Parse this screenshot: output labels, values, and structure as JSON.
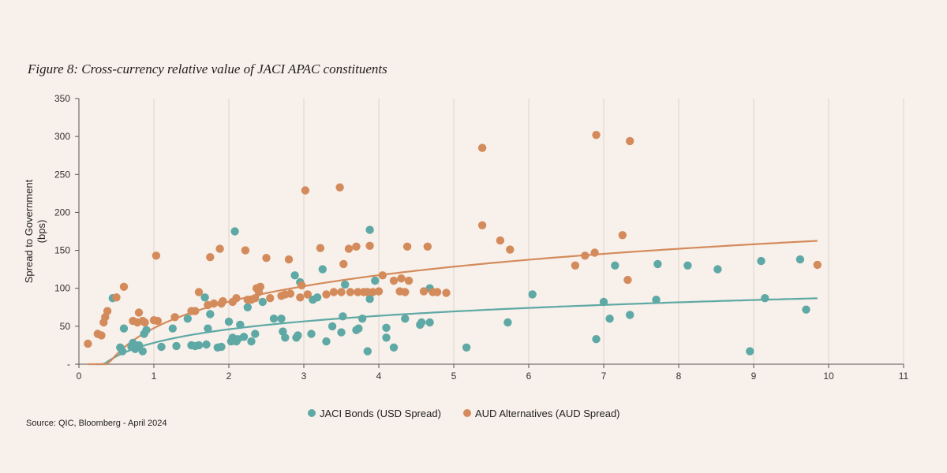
{
  "figure_title": "Figure 8: Cross-currency relative value of JACI APAC constituents",
  "source": "Source: QIC, Bloomberg - April 2024",
  "colors": {
    "jaci": "#5ea9a5",
    "aud": "#d48b5c",
    "grid": "#dcd3cc",
    "axis": "#555555"
  },
  "chart_data": {
    "type": "scatter",
    "title": "",
    "xlabel": "",
    "ylabel_lines": [
      "Spread to Government",
      "(bps)"
    ],
    "xlim": [
      0,
      11
    ],
    "ylim": [
      0,
      350
    ],
    "x_ticks": [
      0,
      1,
      2,
      3,
      4,
      5,
      6,
      7,
      8,
      9,
      10,
      11
    ],
    "x_tick_labels": [
      "0",
      "1",
      "2",
      "3",
      "4",
      "5",
      "6",
      "7",
      "8",
      "9",
      "10",
      "11"
    ],
    "y_ticks": [
      0,
      50,
      100,
      150,
      200,
      250,
      300,
      350
    ],
    "y_tick_labels": [
      "-",
      "50",
      "100",
      "150",
      "200",
      "250",
      "300",
      "350"
    ],
    "grid": "vertical",
    "legend_position": "bottom",
    "series": [
      {
        "name": "JACI Bonds (USD Spread)",
        "color_key": "jaci",
        "points": [
          [
            0.45,
            87
          ],
          [
            0.55,
            22
          ],
          [
            0.58,
            17
          ],
          [
            0.6,
            47
          ],
          [
            0.7,
            23
          ],
          [
            0.72,
            28
          ],
          [
            0.75,
            20
          ],
          [
            0.8,
            25
          ],
          [
            0.85,
            17
          ],
          [
            0.87,
            40
          ],
          [
            0.9,
            45
          ],
          [
            1.1,
            23
          ],
          [
            1.25,
            47
          ],
          [
            1.3,
            24
          ],
          [
            1.45,
            60
          ],
          [
            1.5,
            25
          ],
          [
            1.55,
            24
          ],
          [
            1.6,
            25
          ],
          [
            1.68,
            88
          ],
          [
            1.7,
            26
          ],
          [
            1.72,
            47
          ],
          [
            1.75,
            66
          ],
          [
            1.85,
            22
          ],
          [
            1.9,
            23
          ],
          [
            2.0,
            56
          ],
          [
            2.03,
            30
          ],
          [
            2.05,
            35
          ],
          [
            2.08,
            175
          ],
          [
            2.1,
            30
          ],
          [
            2.12,
            33
          ],
          [
            2.15,
            52
          ],
          [
            2.2,
            36
          ],
          [
            2.25,
            75
          ],
          [
            2.3,
            30
          ],
          [
            2.35,
            40
          ],
          [
            2.45,
            82
          ],
          [
            2.6,
            60
          ],
          [
            2.7,
            60
          ],
          [
            2.72,
            43
          ],
          [
            2.75,
            35
          ],
          [
            2.9,
            35
          ],
          [
            2.92,
            38
          ],
          [
            2.88,
            117
          ],
          [
            2.95,
            108
          ],
          [
            3.1,
            40
          ],
          [
            3.12,
            85
          ],
          [
            3.18,
            88
          ],
          [
            3.25,
            125
          ],
          [
            3.3,
            30
          ],
          [
            3.38,
            50
          ],
          [
            3.5,
            42
          ],
          [
            3.52,
            63
          ],
          [
            3.55,
            105
          ],
          [
            3.7,
            45
          ],
          [
            3.73,
            47
          ],
          [
            3.78,
            60
          ],
          [
            3.85,
            17
          ],
          [
            3.88,
            86
          ],
          [
            3.88,
            177
          ],
          [
            3.95,
            110
          ],
          [
            4.1,
            48
          ],
          [
            4.1,
            35
          ],
          [
            4.2,
            22
          ],
          [
            4.35,
            60
          ],
          [
            4.55,
            52
          ],
          [
            4.57,
            55
          ],
          [
            4.68,
            100
          ],
          [
            4.68,
            55
          ],
          [
            5.17,
            22
          ],
          [
            5.72,
            55
          ],
          [
            6.05,
            92
          ],
          [
            6.9,
            33
          ],
          [
            7.0,
            82
          ],
          [
            7.08,
            60
          ],
          [
            7.15,
            130
          ],
          [
            7.35,
            65
          ],
          [
            7.7,
            85
          ],
          [
            7.72,
            132
          ],
          [
            8.12,
            130
          ],
          [
            8.52,
            125
          ],
          [
            8.95,
            17
          ],
          [
            9.1,
            136
          ],
          [
            9.15,
            87
          ],
          [
            9.62,
            138
          ],
          [
            9.7,
            72
          ]
        ],
        "trend": {
          "a": 25.64,
          "b": 28.22
        }
      },
      {
        "name": "AUD Alternatives (AUD Spread)",
        "color_key": "aud",
        "points": [
          [
            0.12,
            27
          ],
          [
            0.25,
            40
          ],
          [
            0.3,
            38
          ],
          [
            0.33,
            55
          ],
          [
            0.35,
            62
          ],
          [
            0.38,
            70
          ],
          [
            0.5,
            88
          ],
          [
            0.6,
            102
          ],
          [
            0.72,
            57
          ],
          [
            0.78,
            55
          ],
          [
            0.8,
            68
          ],
          [
            0.85,
            57
          ],
          [
            0.88,
            55
          ],
          [
            1.0,
            58
          ],
          [
            1.03,
            143
          ],
          [
            1.05,
            57
          ],
          [
            1.28,
            62
          ],
          [
            1.5,
            70
          ],
          [
            1.55,
            70
          ],
          [
            1.6,
            95
          ],
          [
            1.72,
            78
          ],
          [
            1.75,
            141
          ],
          [
            1.8,
            80
          ],
          [
            1.88,
            152
          ],
          [
            1.9,
            80
          ],
          [
            1.92,
            83
          ],
          [
            2.05,
            82
          ],
          [
            2.1,
            87
          ],
          [
            2.22,
            150
          ],
          [
            2.25,
            85
          ],
          [
            2.3,
            85
          ],
          [
            2.35,
            87
          ],
          [
            2.37,
            100
          ],
          [
            2.4,
            95
          ],
          [
            2.42,
            102
          ],
          [
            2.5,
            140
          ],
          [
            2.55,
            87
          ],
          [
            2.7,
            90
          ],
          [
            2.75,
            92
          ],
          [
            2.8,
            138
          ],
          [
            2.82,
            93
          ],
          [
            2.95,
            88
          ],
          [
            2.97,
            104
          ],
          [
            3.05,
            92
          ],
          [
            3.02,
            229
          ],
          [
            3.22,
            153
          ],
          [
            3.3,
            92
          ],
          [
            3.4,
            95
          ],
          [
            3.48,
            233
          ],
          [
            3.5,
            95
          ],
          [
            3.53,
            132
          ],
          [
            3.6,
            152
          ],
          [
            3.62,
            95
          ],
          [
            3.7,
            155
          ],
          [
            3.72,
            95
          ],
          [
            3.8,
            95
          ],
          [
            3.85,
            95
          ],
          [
            3.88,
            156
          ],
          [
            3.92,
            95
          ],
          [
            4.0,
            96
          ],
          [
            4.05,
            117
          ],
          [
            4.2,
            110
          ],
          [
            4.28,
            96
          ],
          [
            4.3,
            113
          ],
          [
            4.35,
            95
          ],
          [
            4.38,
            155
          ],
          [
            4.4,
            110
          ],
          [
            4.6,
            96
          ],
          [
            4.65,
            155
          ],
          [
            4.72,
            95
          ],
          [
            4.78,
            95
          ],
          [
            4.9,
            94
          ],
          [
            5.38,
            285
          ],
          [
            5.38,
            183
          ],
          [
            5.62,
            163
          ],
          [
            5.75,
            151
          ],
          [
            6.62,
            130
          ],
          [
            6.75,
            143
          ],
          [
            6.88,
            147
          ],
          [
            6.9,
            302
          ],
          [
            7.25,
            170
          ],
          [
            7.32,
            111
          ],
          [
            7.35,
            294
          ],
          [
            9.85,
            131
          ]
        ],
        "trend": {
          "a": 50.26,
          "b": 47.58
        }
      }
    ]
  }
}
